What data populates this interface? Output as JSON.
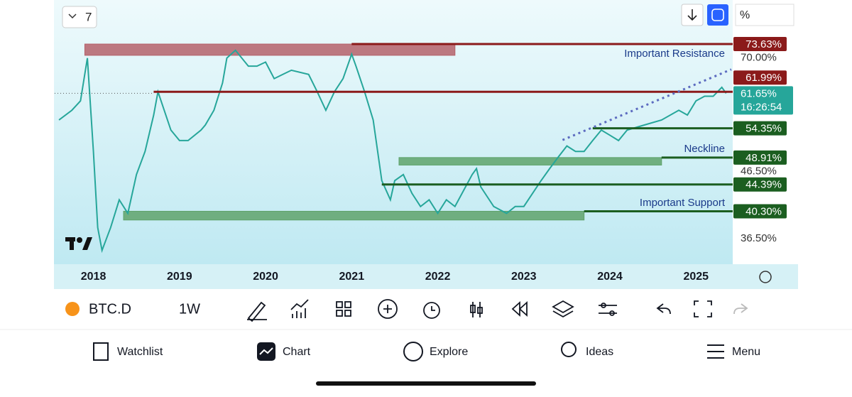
{
  "toolbar_top": {
    "interval_count": "7",
    "scale_mode": "%"
  },
  "chart_data": {
    "type": "line",
    "log_scale": true,
    "xlim": [
      2017.55,
      2025.41
    ],
    "xticks": [
      2018,
      2019,
      2020,
      2021,
      2022,
      2023,
      2024,
      2025
    ],
    "ylim": [
      33.3,
      86.3
    ],
    "yticks": [
      {
        "value": 36.5,
        "label": "36.50%"
      },
      {
        "value": 46.5,
        "label": "46.50%"
      },
      {
        "value": 70,
        "label": "70.00%"
      }
    ],
    "series": [
      {
        "name": "BTC.D",
        "color": "#26a69a",
        "x": [
          2017.6,
          2017.75,
          2017.85,
          2017.93,
          2018.0,
          2018.05,
          2018.1,
          2018.2,
          2018.3,
          2018.4,
          2018.5,
          2018.6,
          2018.7,
          2018.75,
          2018.9,
          2019.0,
          2019.1,
          2019.25,
          2019.3,
          2019.4,
          2019.5,
          2019.55,
          2019.65,
          2019.8,
          2019.9,
          2020.0,
          2020.1,
          2020.2,
          2020.3,
          2020.5,
          2020.6,
          2020.7,
          2020.8,
          2020.9,
          2021.0,
          2021.05,
          2021.15,
          2021.25,
          2021.35,
          2021.45,
          2021.5,
          2021.6,
          2021.7,
          2021.8,
          2021.9,
          2022.0,
          2022.1,
          2022.2,
          2022.4,
          2022.45,
          2022.5,
          2022.65,
          2022.8,
          2022.9,
          2023.0,
          2023.2,
          2023.3,
          2023.4,
          2023.5,
          2023.6,
          2023.7,
          2023.8,
          2023.9,
          2024.0,
          2024.1,
          2024.2,
          2024.4,
          2024.6,
          2024.8,
          2024.9,
          2025.0,
          2025.1,
          2025.2,
          2025.3,
          2025.35
        ],
        "values": [
          56,
          58,
          60,
          70,
          50,
          38,
          35,
          38,
          42,
          40,
          46,
          50,
          57,
          62,
          54,
          52,
          52,
          54,
          55,
          58,
          64,
          70,
          72,
          68,
          68,
          69,
          65,
          66,
          67,
          66,
          62,
          58,
          62,
          65,
          71,
          68,
          62,
          56,
          45,
          42,
          45,
          46,
          43,
          41,
          42,
          40,
          42,
          41,
          46,
          47,
          44,
          41,
          40,
          41,
          41,
          45,
          47,
          49,
          51,
          50,
          50,
          52,
          54,
          53,
          52,
          54,
          55,
          56,
          58,
          57,
          60,
          61,
          61,
          63,
          61.65
        ]
      }
    ],
    "current_value": 61.65,
    "current_label": "61.65%",
    "countdown": "16:26:54",
    "levels": [
      {
        "value": 73.63,
        "label": "73.63%",
        "x0": 2021.0,
        "color": "#8b1a1a"
      },
      {
        "value": 61.99,
        "label": "61.99%",
        "x0": 2018.7,
        "color": "#8b1a1a"
      },
      {
        "value": 54.35,
        "label": "54.35%",
        "x0": 2023.8,
        "color": "#1b5e20"
      },
      {
        "value": 48.91,
        "label": "48.91%",
        "x0": 2024.6,
        "color": "#1b5e20"
      },
      {
        "value": 44.39,
        "label": "44.39%",
        "x0": 2021.35,
        "color": "#1b5e20"
      },
      {
        "value": 40.3,
        "label": "40.30%",
        "x0": 2023.7,
        "color": "#1b5e20"
      }
    ],
    "zones": [
      {
        "x0": 2017.9,
        "x1": 2022.2,
        "y0": 70.7,
        "y1": 73.63,
        "color": "#b5616a"
      },
      {
        "x0": 2021.55,
        "x1": 2024.6,
        "y0": 47.6,
        "y1": 48.91,
        "color": "#5fa36b"
      },
      {
        "x0": 2018.35,
        "x1": 2023.7,
        "y0": 39.05,
        "y1": 40.3,
        "color": "#5fa36b"
      }
    ],
    "trendline": {
      "x": [
        2023.45,
        2025.41
      ],
      "values": [
        52.1,
        67.2
      ],
      "color": "#5c6bc0"
    },
    "annotations": [
      "Important Resistance",
      "Neckline",
      "Important Support"
    ]
  },
  "symbol_bar": {
    "interval": "1W"
  },
  "nav": [
    "Watchlist",
    "Chart",
    "Explore",
    "Ideas",
    "Menu"
  ]
}
